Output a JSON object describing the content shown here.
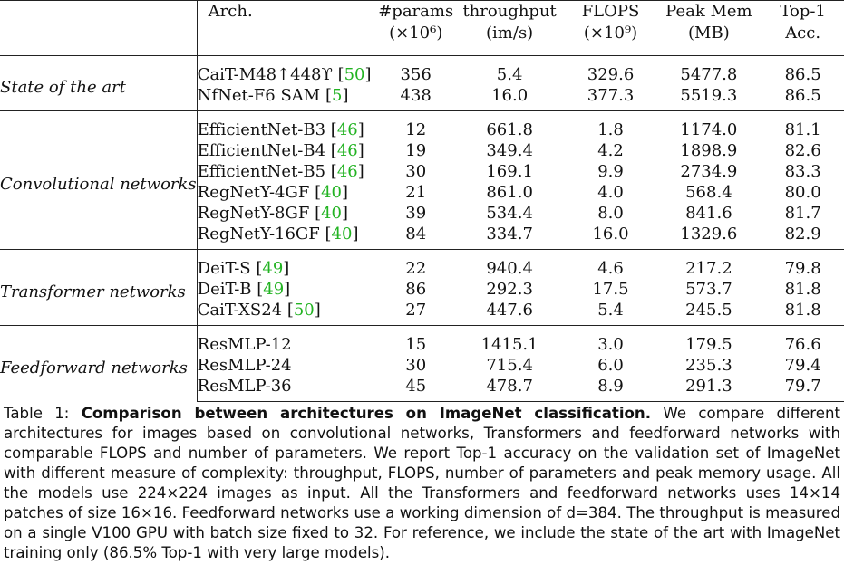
{
  "table": {
    "header": {
      "arch": "Arch.",
      "params_l1": "#params",
      "params_l2": "(×10⁶)",
      "throughput_l1": "throughput",
      "throughput_l2": "(im/s)",
      "flops_l1": "FLOPS",
      "flops_l2": "(×10⁹)",
      "mem_l1": "Peak Mem",
      "mem_l2": "(MB)",
      "acc_l1": "Top-1",
      "acc_l2": "Acc."
    },
    "sections": [
      {
        "group": "State of the art",
        "rows": [
          {
            "arch": "CaiT-M48↑448ϒ",
            "ref": "50",
            "params": "356",
            "throughput": "5.4",
            "flops": "329.6",
            "mem": "5477.8",
            "acc": "86.5"
          },
          {
            "arch": "NfNet-F6 SAM",
            "ref": "5",
            "params": "438",
            "throughput": "16.0",
            "flops": "377.3",
            "mem": "5519.3",
            "acc": "86.5"
          }
        ]
      },
      {
        "group": "Convolutional networks",
        "rows": [
          {
            "arch": "EfficientNet-B3",
            "ref": "46",
            "params": "12",
            "throughput": "661.8",
            "flops": "1.8",
            "mem": "1174.0",
            "acc": "81.1"
          },
          {
            "arch": "EfficientNet-B4",
            "ref": "46",
            "params": "19",
            "throughput": "349.4",
            "flops": "4.2",
            "mem": "1898.9",
            "acc": "82.6"
          },
          {
            "arch": "EfficientNet-B5",
            "ref": "46",
            "params": "30",
            "throughput": "169.1",
            "flops": "9.9",
            "mem": "2734.9",
            "acc": "83.3"
          },
          {
            "arch": "RegNetY-4GF",
            "ref": "40",
            "params": "21",
            "throughput": "861.0",
            "flops": "4.0",
            "mem": "568.4",
            "acc": "80.0"
          },
          {
            "arch": "RegNetY-8GF",
            "ref": "40",
            "params": "39",
            "throughput": "534.4",
            "flops": "8.0",
            "mem": "841.6",
            "acc": "81.7"
          },
          {
            "arch": "RegNetY-16GF",
            "ref": "40",
            "params": "84",
            "throughput": "334.7",
            "flops": "16.0",
            "mem": "1329.6",
            "acc": "82.9"
          }
        ]
      },
      {
        "group": "Transformer networks",
        "rows": [
          {
            "arch": "DeiT-S",
            "ref": "49",
            "params": "22",
            "throughput": "940.4",
            "flops": "4.6",
            "mem": "217.2",
            "acc": "79.8"
          },
          {
            "arch": "DeiT-B",
            "ref": "49",
            "params": "86",
            "throughput": "292.3",
            "flops": "17.5",
            "mem": "573.7",
            "acc": "81.8"
          },
          {
            "arch": "CaiT-XS24",
            "ref": "50",
            "params": "27",
            "throughput": "447.6",
            "flops": "5.4",
            "mem": "245.5",
            "acc": "81.8"
          }
        ]
      },
      {
        "group": "Feedforward networks",
        "rows": [
          {
            "arch": "ResMLP-12",
            "ref": "",
            "params": "15",
            "throughput": "1415.1",
            "flops": "3.0",
            "mem": "179.5",
            "acc": "76.6"
          },
          {
            "arch": "ResMLP-24",
            "ref": "",
            "params": "30",
            "throughput": "715.4",
            "flops": "6.0",
            "mem": "235.3",
            "acc": "79.4"
          },
          {
            "arch": "ResMLP-36",
            "ref": "",
            "params": "45",
            "throughput": "478.7",
            "flops": "8.9",
            "mem": "291.3",
            "acc": "79.7"
          }
        ]
      }
    ]
  },
  "caption": {
    "label": "Table 1:",
    "bold": "Comparison between architectures on ImageNet classification.",
    "text": "We compare different architectures for images based on convolutional networks, Transformers and feedforward networks with comparable FLOPS and number of parameters. We report Top-1 accuracy on the validation set of ImageNet with different measure of complexity: throughput, FLOPS, number of parameters and peak memory usage. All the models use 224×224 images as input. All the Transformers and feedforward networks uses 14×14 patches of size 16×16. Feedforward networks use a working dimension of d=384. The throughput is measured on a single V100 GPU with batch size fixed to 32. For reference, we include the state of the art with ImageNet training only (86.5% Top-1 with very large models)."
  }
}
